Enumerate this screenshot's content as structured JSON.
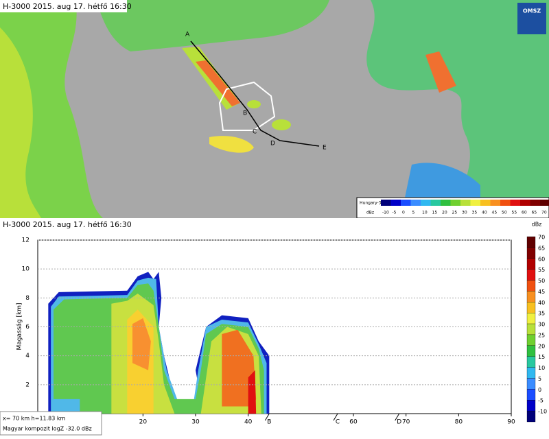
{
  "map": {
    "header": "H-3000 2015. aug 17. hétfő 16:30",
    "logo": "OMSZ",
    "points": [
      "A",
      "B",
      "C",
      "D",
      "E"
    ],
    "legend": {
      "title": "Hungary-3D",
      "unit": "dBz",
      "ticks": [
        "-10",
        "-5",
        "0",
        "5",
        "10",
        "15",
        "20",
        "25",
        "30",
        "35",
        "40",
        "45",
        "50",
        "55",
        "60",
        "65",
        "70"
      ]
    }
  },
  "cross_section": {
    "header": "H-3000 2015. aug 17. hétfő 16:30",
    "y_label": "Magasság [km]",
    "xlim": [
      0,
      90
    ],
    "xticks": [
      20,
      30,
      40,
      60,
      70,
      80,
      90
    ],
    "waypoints": [
      {
        "label": "B",
        "x": 44
      },
      {
        "label": "C",
        "x": 57
      },
      {
        "label": "D",
        "x": 68.7
      }
    ],
    "ylim": [
      0,
      12
    ],
    "yticks": [
      2,
      4,
      6,
      8,
      10,
      12
    ],
    "colorbar": {
      "unit": "dBz",
      "ticks": [
        "70",
        "65",
        "60",
        "55",
        "50",
        "45",
        "40",
        "35",
        "30",
        "25",
        "20",
        "15",
        "10",
        "5",
        "0",
        "-5",
        "-10"
      ]
    },
    "readout": [
      "x=  70 km h=11.83 km",
      "Magyar kompozit logZ   -32.0 dBz"
    ]
  }
}
